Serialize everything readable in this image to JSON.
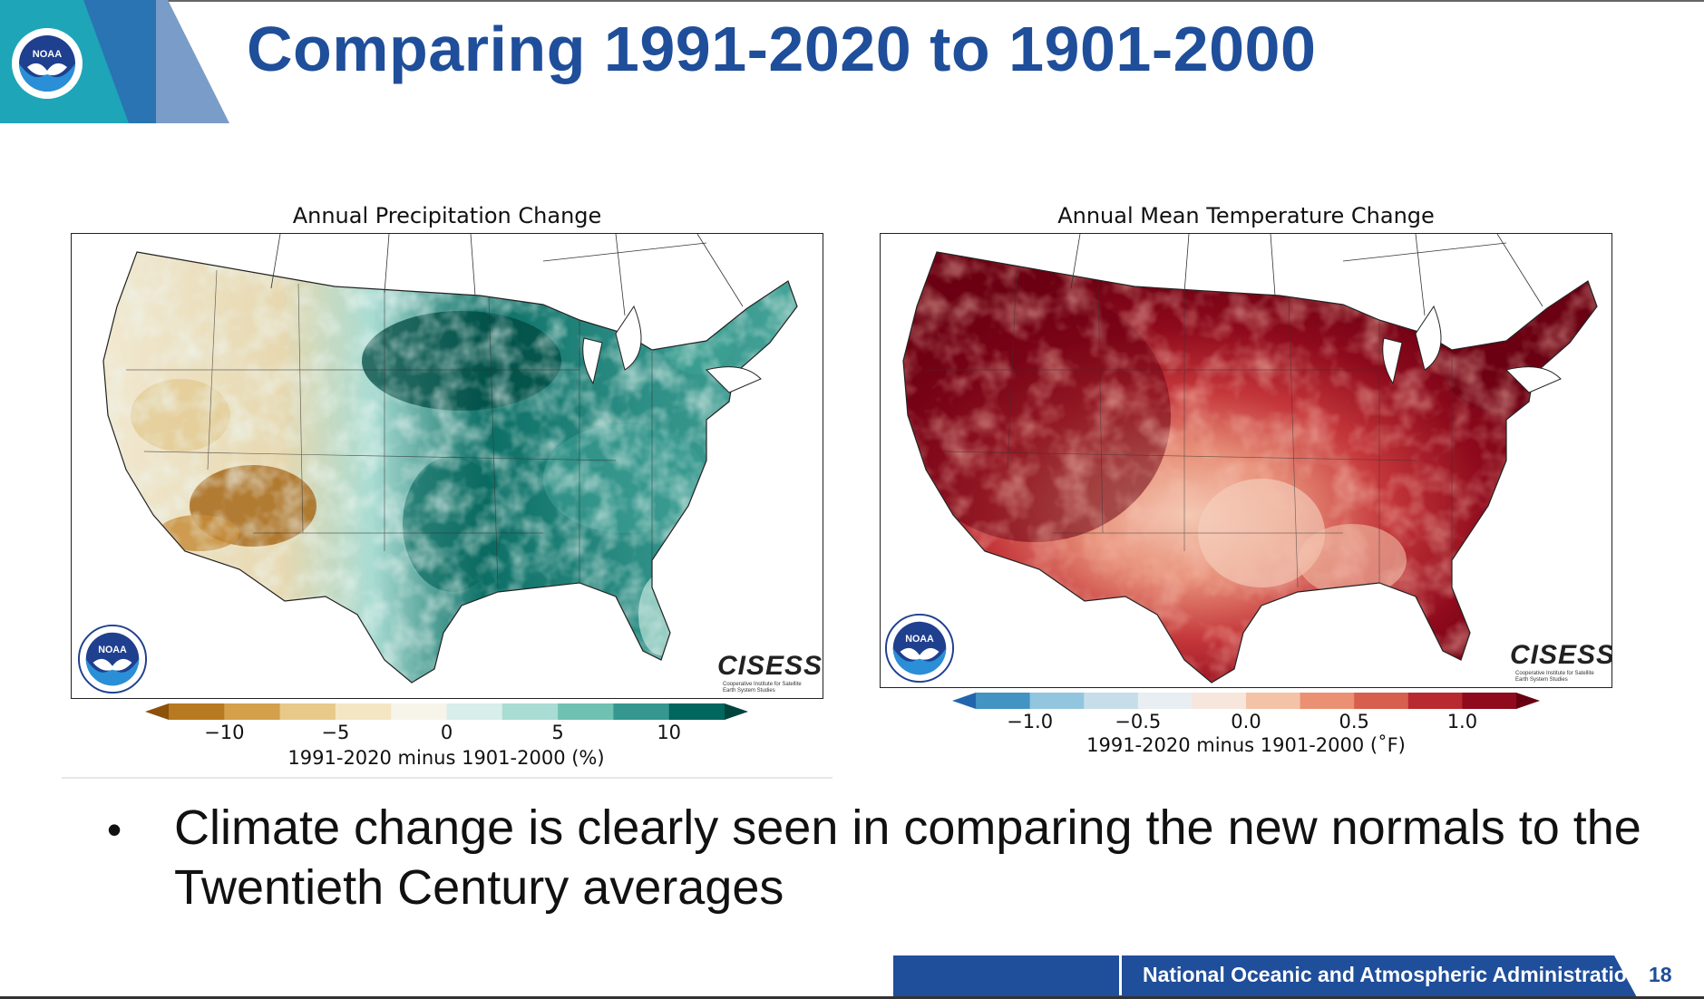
{
  "slide": {
    "title": "Comparing 1991-2020 to 1901-2000",
    "logo_text": "NOAA",
    "bullet": "Climate change is clearly seen in comparing the new normals to the Twentieth Century averages",
    "footer": {
      "org": "National Oceanic and Atmospheric Administration  //",
      "page_number": "18"
    }
  },
  "colors": {
    "noaa_blue": "#1f4e9a",
    "header_teal": "#1ea5b8",
    "header_blue": "#2a74b3",
    "header_light": "#7a9cc8"
  },
  "maps": {
    "precipitation": {
      "title": "Annual Precipitation Change",
      "colorbar_ticks": [
        "−10",
        "−5",
        "0",
        "5",
        "10"
      ],
      "colorbar_label": "1991-2020 minus 1901-2000 (%)",
      "brand": "CISESS",
      "brand_sub": "Cooperative Institute for Satellite Earth System Studies",
      "logo_text": "NOAA",
      "palette": [
        "#8c510a",
        "#b87a21",
        "#d4a04c",
        "#e8c98a",
        "#f4e6c3",
        "#f7f4ea",
        "#d7eeeb",
        "#a9dcd3",
        "#6fc1b1",
        "#35978f",
        "#01665e",
        "#00443d"
      ]
    },
    "temperature": {
      "title": "Annual Mean Temperature Change",
      "colorbar_ticks": [
        "−1.0",
        "−0.5",
        "0.0",
        "0.5",
        "1.0"
      ],
      "colorbar_label": "1991-2020 minus 1901-2000 (˚F)",
      "brand": "CISESS",
      "brand_sub": "Cooperative Institute for Satellite Earth System Studies",
      "logo_text": "NOAA",
      "palette": [
        "#2166ac",
        "#4393c3",
        "#92c5de",
        "#c7dde9",
        "#e8eef1",
        "#f7e6dc",
        "#f4c2a7",
        "#eb9072",
        "#d6604d",
        "#b82a2f",
        "#8e0a1c",
        "#670010"
      ]
    }
  }
}
